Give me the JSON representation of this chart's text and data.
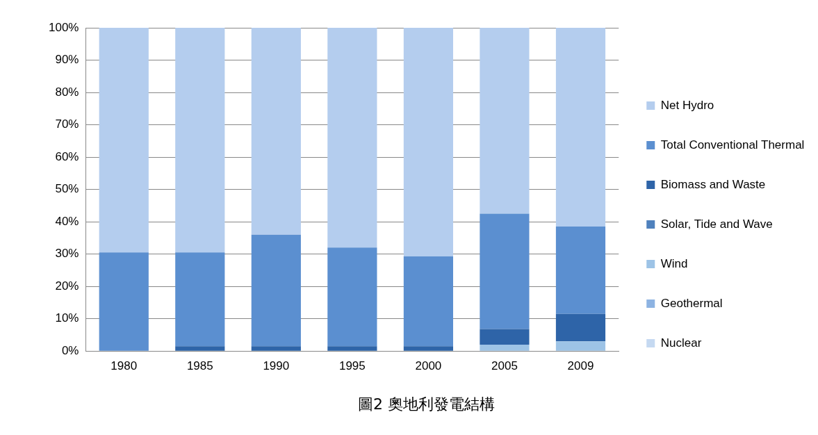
{
  "chart_data": {
    "type": "bar",
    "title": "圖2 奧地利發電結構",
    "stacked": true,
    "categories": [
      "1980",
      "1985",
      "1990",
      "1995",
      "2000",
      "2005",
      "2009"
    ],
    "series": [
      {
        "name": "Nuclear",
        "color": "#c5d9f1",
        "values": [
          0,
          0,
          0,
          0,
          0,
          0,
          0
        ]
      },
      {
        "name": "Geothermal",
        "color": "#8db3e2",
        "values": [
          0,
          0,
          0,
          0,
          0,
          0,
          0
        ]
      },
      {
        "name": "Wind",
        "color": "#9dc3e6",
        "values": [
          0,
          0,
          0,
          0,
          0,
          2,
          3
        ]
      },
      {
        "name": "Solar, Tide and Wave",
        "color": "#4f81bd",
        "values": [
          0,
          0,
          0,
          0,
          0,
          0,
          0
        ]
      },
      {
        "name": "Biomass and Waste",
        "color": "#2e64a8",
        "values": [
          0,
          1.5,
          1.5,
          1.5,
          1.5,
          4.8,
          8.5
        ]
      },
      {
        "name": "Total Conventional Thermal",
        "color": "#5b8fd0",
        "values": [
          30.5,
          29,
          34.5,
          30.5,
          27.8,
          35.7,
          27
        ]
      },
      {
        "name": "Net Hydro",
        "color": "#b4cdee",
        "values": [
          69.5,
          69.5,
          64,
          68,
          70.7,
          57.5,
          61.5
        ]
      }
    ],
    "ylim": [
      0,
      100
    ],
    "yticks": [
      {
        "value": 0,
        "label": "0%"
      },
      {
        "value": 10,
        "label": "10%"
      },
      {
        "value": 20,
        "label": "20%"
      },
      {
        "value": 30,
        "label": "30%"
      },
      {
        "value": 40,
        "label": "40%"
      },
      {
        "value": 50,
        "label": "50%"
      },
      {
        "value": 60,
        "label": "60%"
      },
      {
        "value": 70,
        "label": "70%"
      },
      {
        "value": 80,
        "label": "80%"
      },
      {
        "value": 90,
        "label": "90%"
      },
      {
        "value": 100,
        "label": "100%"
      }
    ],
    "grid": "y",
    "legend": "right"
  }
}
